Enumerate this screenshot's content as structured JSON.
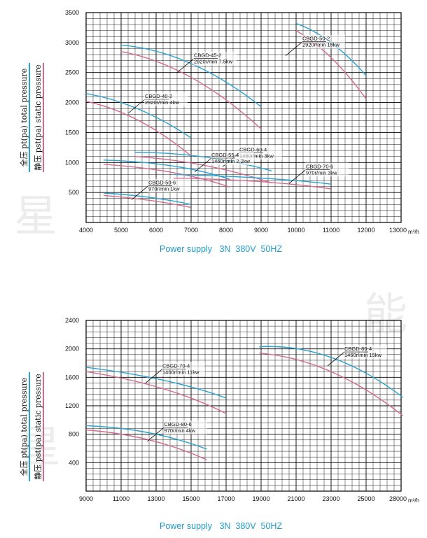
{
  "chart_data": [
    {
      "type": "line",
      "title": "",
      "xlabel": "m³/h",
      "ylabel_total": "全压 pt(pa) total pressure",
      "ylabel_static": "静压 pst(pa) static pressure",
      "footer": "Power supply   3N  380V  50HZ",
      "xlim": [
        4000,
        13000
      ],
      "ylim": [
        0,
        3500
      ],
      "x_ticks": [
        4000,
        5000,
        6000,
        7000,
        8000,
        9000,
        10000,
        11000,
        12000,
        13000
      ],
      "y_ticks": [
        500,
        1000,
        1500,
        2000,
        2500,
        3000,
        3500
      ],
      "grid": true,
      "total_pressure_color": "#29a3cf",
      "static_pressure_color": "#d46a8e",
      "series": [
        {
          "model": "CBGD-50-2",
          "spec": "2920r/min 15kw",
          "total": {
            "x": [
              10000,
              11000,
              12000
            ],
            "y": [
              3320,
              3000,
              2450
            ]
          },
          "static": {
            "x": [
              10000,
              11000,
              12000
            ],
            "y": [
              3200,
              2750,
              2060
            ]
          },
          "label_anchor": [
            9700,
            2780
          ]
        },
        {
          "model": "CBGD-45-2",
          "spec": "2920r/min 7.5kw",
          "total": {
            "x": [
              5000,
              7000,
              9000
            ],
            "y": [
              2960,
              2650,
              1930
            ]
          },
          "static": {
            "x": [
              5000,
              7000,
              9000
            ],
            "y": [
              2850,
              2420,
              1560
            ]
          },
          "label_anchor": [
            6600,
            2500
          ]
        },
        {
          "model": "CBGD-40-2",
          "spec": "2920r/min 4kw",
          "total": {
            "x": [
              4000,
              5500,
              7000
            ],
            "y": [
              2150,
              1890,
              1410
            ]
          },
          "static": {
            "x": [
              4000,
              5500,
              7000
            ],
            "y": [
              2020,
              1700,
              1110
            ]
          },
          "label_anchor": [
            5200,
            1820
          ]
        },
        {
          "model": "CBGD-60-4",
          "spec": "1460r/min 3kw",
          "total": {
            "x": [
              5400,
              7400,
              9300
            ],
            "y": [
              1170,
              1090,
              860
            ]
          },
          "static": {
            "x": [
              5400,
              7400,
              9300
            ],
            "y": [
              1100,
              950,
              660
            ]
          },
          "label_anchor": [
            7900,
            930
          ]
        },
        {
          "model": "CBGD-55-4",
          "spec": "1460r/min 2.2kw",
          "total": {
            "x": [
              4500,
              6500,
              8100
            ],
            "y": [
              1040,
              940,
              720
            ]
          },
          "static": {
            "x": [
              4500,
              6500,
              8100
            ],
            "y": [
              970,
              830,
              590
            ]
          },
          "label_anchor": [
            7100,
            840
          ]
        },
        {
          "model": "CBGD-70-6",
          "spec": "970r/min 3kw",
          "total": {
            "x": [
              6500,
              9000,
              11000
            ],
            "y": [
              800,
              740,
              640
            ]
          },
          "static": {
            "x": [
              6500,
              9000,
              11000
            ],
            "y": [
              740,
              680,
              560
            ]
          },
          "label_anchor": [
            9800,
            650
          ]
        },
        {
          "model": "CBGD-50-6",
          "spec": "970r/min 1kw",
          "total": {
            "x": [
              4500,
              5800,
              7000
            ],
            "y": [
              490,
              420,
              300
            ]
          },
          "static": {
            "x": [
              4500,
              5800,
              7000
            ],
            "y": [
              450,
              370,
              250
            ]
          },
          "label_anchor": [
            5300,
            380
          ]
        }
      ]
    },
    {
      "type": "line",
      "title": "",
      "xlabel": "m³/h",
      "ylabel_total": "全压 pt(pa) total pressure",
      "ylabel_static": "静压 pst(pa) static pressure",
      "footer": "Power supply   3N  380V  50HZ",
      "xlim": [
        9000,
        28000
      ],
      "ylim": [
        0,
        2400
      ],
      "x_ticks": [
        9000,
        11000,
        13000,
        15000,
        17000,
        19000,
        21000,
        23000,
        25000,
        28000
      ],
      "y_ticks": [
        400,
        800,
        1200,
        1600,
        2000,
        2400
      ],
      "grid": true,
      "total_pressure_color": "#29a3cf",
      "static_pressure_color": "#d46a8e",
      "series": [
        {
          "model": "CBGD-80-4",
          "spec": "1460r/min 15kw",
          "total": {
            "category_index": [
              4.95,
              7.0,
              9.05
            ],
            "y": [
              2030,
              1880,
              1320
            ]
          },
          "static": {
            "category_index": [
              4.95,
              7.0,
              9.05
            ],
            "y": [
              1940,
              1680,
              1060
            ]
          },
          "label_anchor": [
            6.9,
            1760
          ]
        },
        {
          "model": "CBGD-70-4",
          "spec": "1460r/min 11kw",
          "total": {
            "category_index": [
              0.0,
              2.2,
              4.0
            ],
            "y": [
              1740,
              1560,
              1310
            ]
          },
          "static": {
            "category_index": [
              0.0,
              2.2,
              4.0
            ],
            "y": [
              1680,
              1440,
              1090
            ]
          },
          "label_anchor": [
            1.7,
            1520
          ]
        },
        {
          "model": "CBGD-80-6",
          "spec": "970r/min 4kw",
          "total": {
            "category_index": [
              0.0,
              1.8,
              3.45
            ],
            "y": [
              920,
              820,
              590
            ]
          },
          "static": {
            "category_index": [
              0.0,
              1.8,
              3.45
            ],
            "y": [
              860,
              720,
              440
            ]
          },
          "label_anchor": [
            1.75,
            700
          ]
        }
      ]
    }
  ]
}
